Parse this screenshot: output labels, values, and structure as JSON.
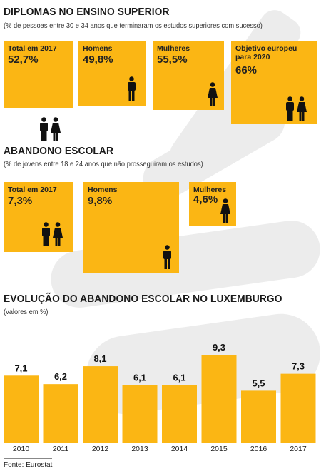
{
  "diplomas": {
    "title": "DIPLOMAS NO ENSINO SUPERIOR",
    "subtitle": "(% de pessoas entre 30 e 34 anos que terminaram os estudos superiores com sucesso)",
    "boxes": [
      {
        "label": "Total em 2017",
        "value": "52,7%",
        "icons": [
          "male-icon",
          "female-icon"
        ]
      },
      {
        "label": "Homens",
        "value": "49,8%",
        "icons": [
          "male-icon"
        ]
      },
      {
        "label": "Mulheres",
        "value": "55,5%",
        "icons": [
          "female-icon"
        ]
      },
      {
        "label": "Objetivo europeu para 2020",
        "value": "66%",
        "icons": [
          "male-icon",
          "female-icon"
        ]
      }
    ]
  },
  "abandono": {
    "title": "ABANDONO ESCOLAR",
    "subtitle": "(% de jovens entre 18 e 24 anos que não prosseguiram os estudos)",
    "boxes": [
      {
        "label": "Total em 2017",
        "value": "7,3%",
        "icons": [
          "male-icon",
          "female-icon"
        ]
      },
      {
        "label": "Homens",
        "value": "9,8%",
        "icons": [
          "male-icon"
        ]
      },
      {
        "label": "Mulheres",
        "value": "4,6%",
        "icons": [
          "female-icon"
        ]
      }
    ]
  },
  "evolucao": {
    "title": "EVOLUÇÃO DO ABANDONO ESCOLAR NO LUXEMBURGO",
    "subtitle": "(valores em %)"
  },
  "source": "Fonte: Eurostat",
  "colors": {
    "accent": "#fbb614",
    "icon": "#111111",
    "watermark": "#ececec"
  },
  "chart_data": {
    "type": "bar",
    "title": "EVOLUÇÃO DO ABANDONO ESCOLAR NO LUXEMBURGO",
    "subtitle": "(valores em %)",
    "categories": [
      "2010",
      "2011",
      "2012",
      "2013",
      "2014",
      "2015",
      "2016",
      "2017"
    ],
    "values": [
      7.1,
      6.2,
      8.1,
      6.1,
      6.1,
      9.3,
      5.5,
      7.3
    ],
    "value_labels": [
      "7,1",
      "6,2",
      "8,1",
      "6,1",
      "6,1",
      "9,3",
      "5,5",
      "7,3"
    ],
    "xlabel": "",
    "ylabel": "",
    "ylim": [
      0,
      10
    ],
    "grid": false,
    "legend": "none"
  }
}
